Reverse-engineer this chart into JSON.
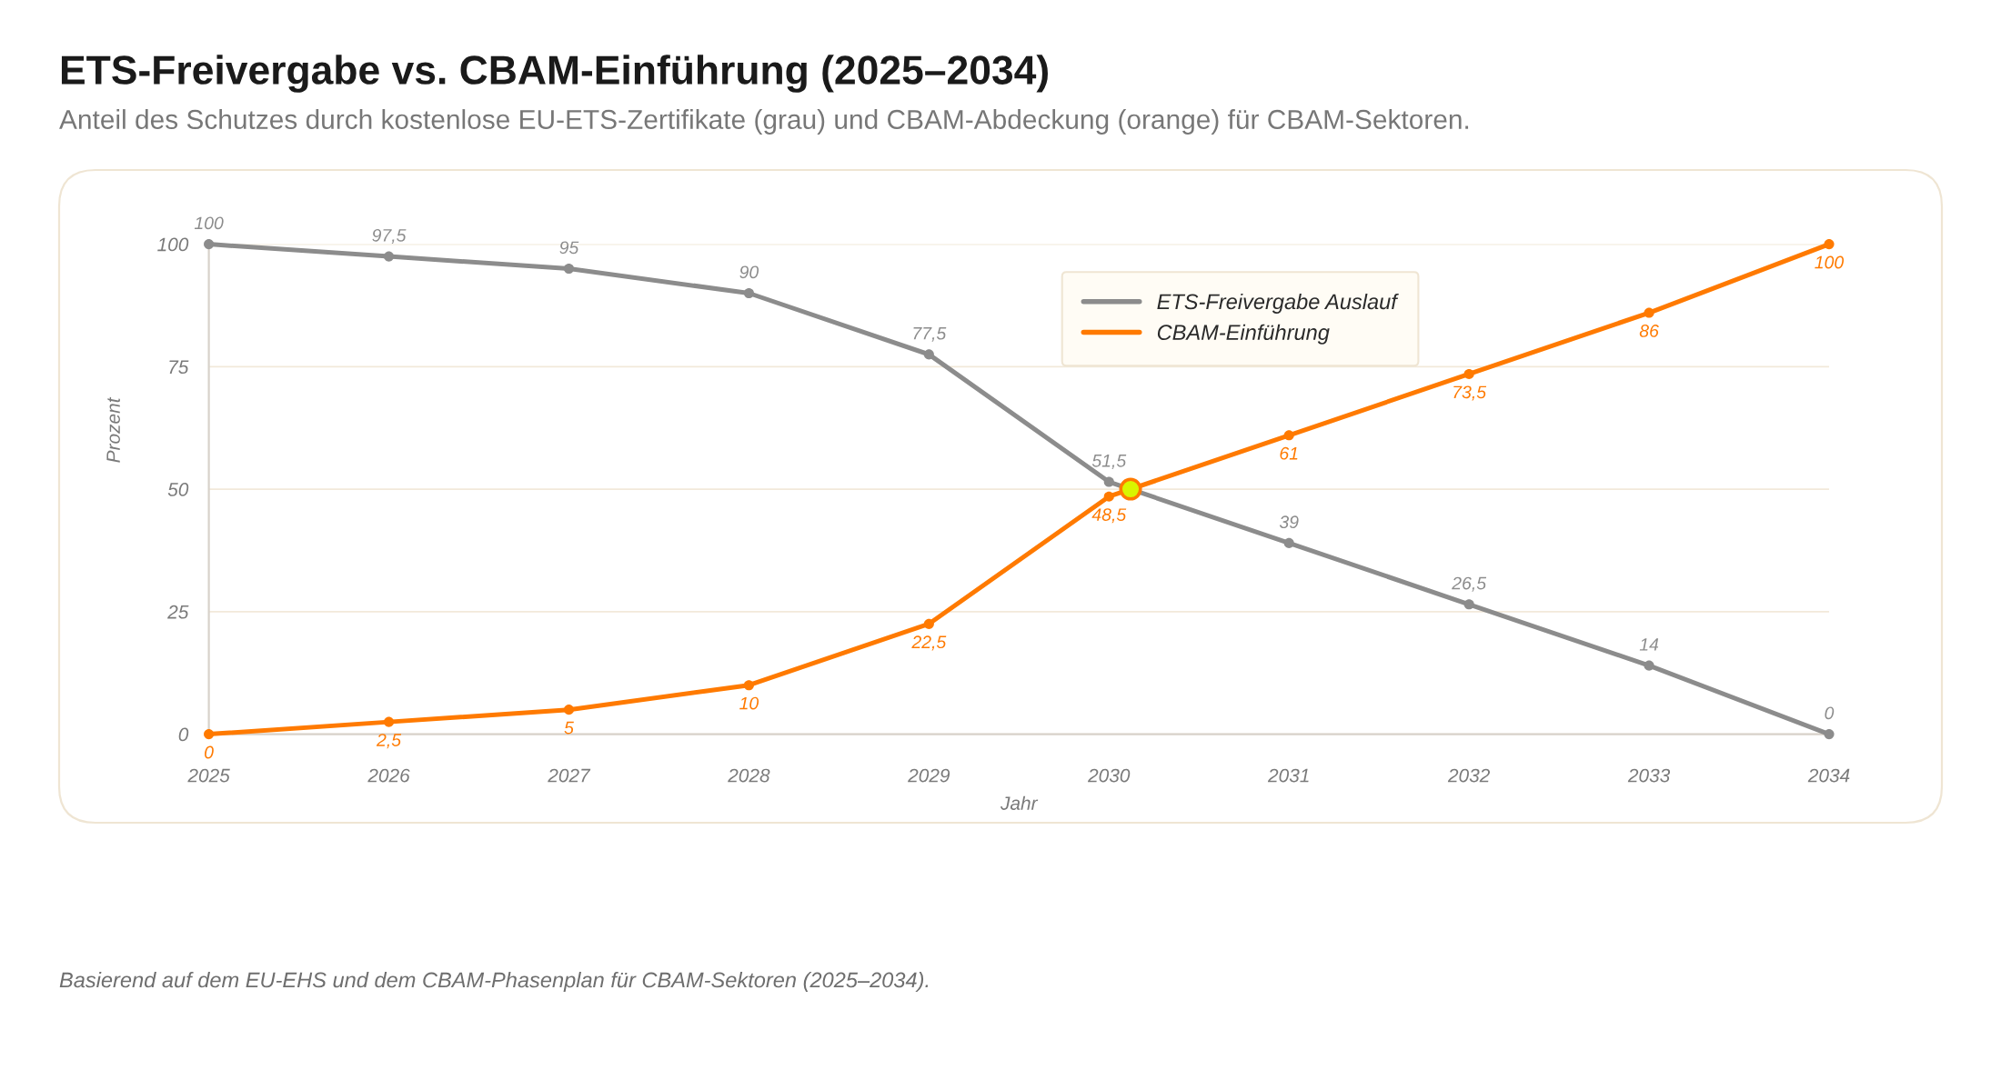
{
  "chart_data": {
    "type": "line",
    "title": "ETS-Freivergabe vs. CBAM-Einführung (2025–2034)",
    "subtitle": "Anteil des Schutzes durch kostenlose EU-ETS-Zertifikate (grau) und CBAM-Abdeckung (orange) für CBAM-Sektoren.",
    "xlabel": "Jahr",
    "ylabel": "Prozent",
    "x": [
      2025,
      2026,
      2027,
      2028,
      2029,
      2030,
      2031,
      2032,
      2033,
      2034
    ],
    "series": [
      {
        "name": "ETS-Freivergabe Auslauf",
        "color": "#8c8c8c",
        "values": [
          100,
          97.5,
          95,
          90,
          77.5,
          51.5,
          39,
          26.5,
          14,
          0
        ],
        "value_labels": [
          "100",
          "97,5",
          "95",
          "90",
          "77,5",
          "51,5",
          "39",
          "26,5",
          "14",
          "0"
        ]
      },
      {
        "name": "CBAM-Einführung",
        "color": "#ff7a00",
        "values": [
          0,
          2.5,
          5,
          10,
          22.5,
          48.5,
          61,
          73.5,
          86,
          100
        ],
        "value_labels": [
          "0",
          "2,5",
          "5",
          "10",
          "22,5",
          "48,5",
          "61",
          "73,5",
          "86",
          "100"
        ]
      },
      {
        "type": "scatter",
        "x": [
          2030.12
        ],
        "values": [
          50
        ],
        "color": "#d9f500"
      }
    ],
    "xlim": [
      2025,
      2034
    ],
    "xticks": [
      2025,
      2026,
      2027,
      2028,
      2029,
      2030,
      2031,
      2032,
      2033,
      2034
    ],
    "ylim": [
      0,
      100
    ],
    "yticks": [
      0,
      25,
      50,
      75,
      100
    ],
    "grid": "y",
    "legend": "top",
    "marker": "circle",
    "annotations": [
      "Basierend auf dem EU-EHS und dem CBAM-Phasenplan für CBAM-Sektoren (2025–2034)."
    ]
  }
}
